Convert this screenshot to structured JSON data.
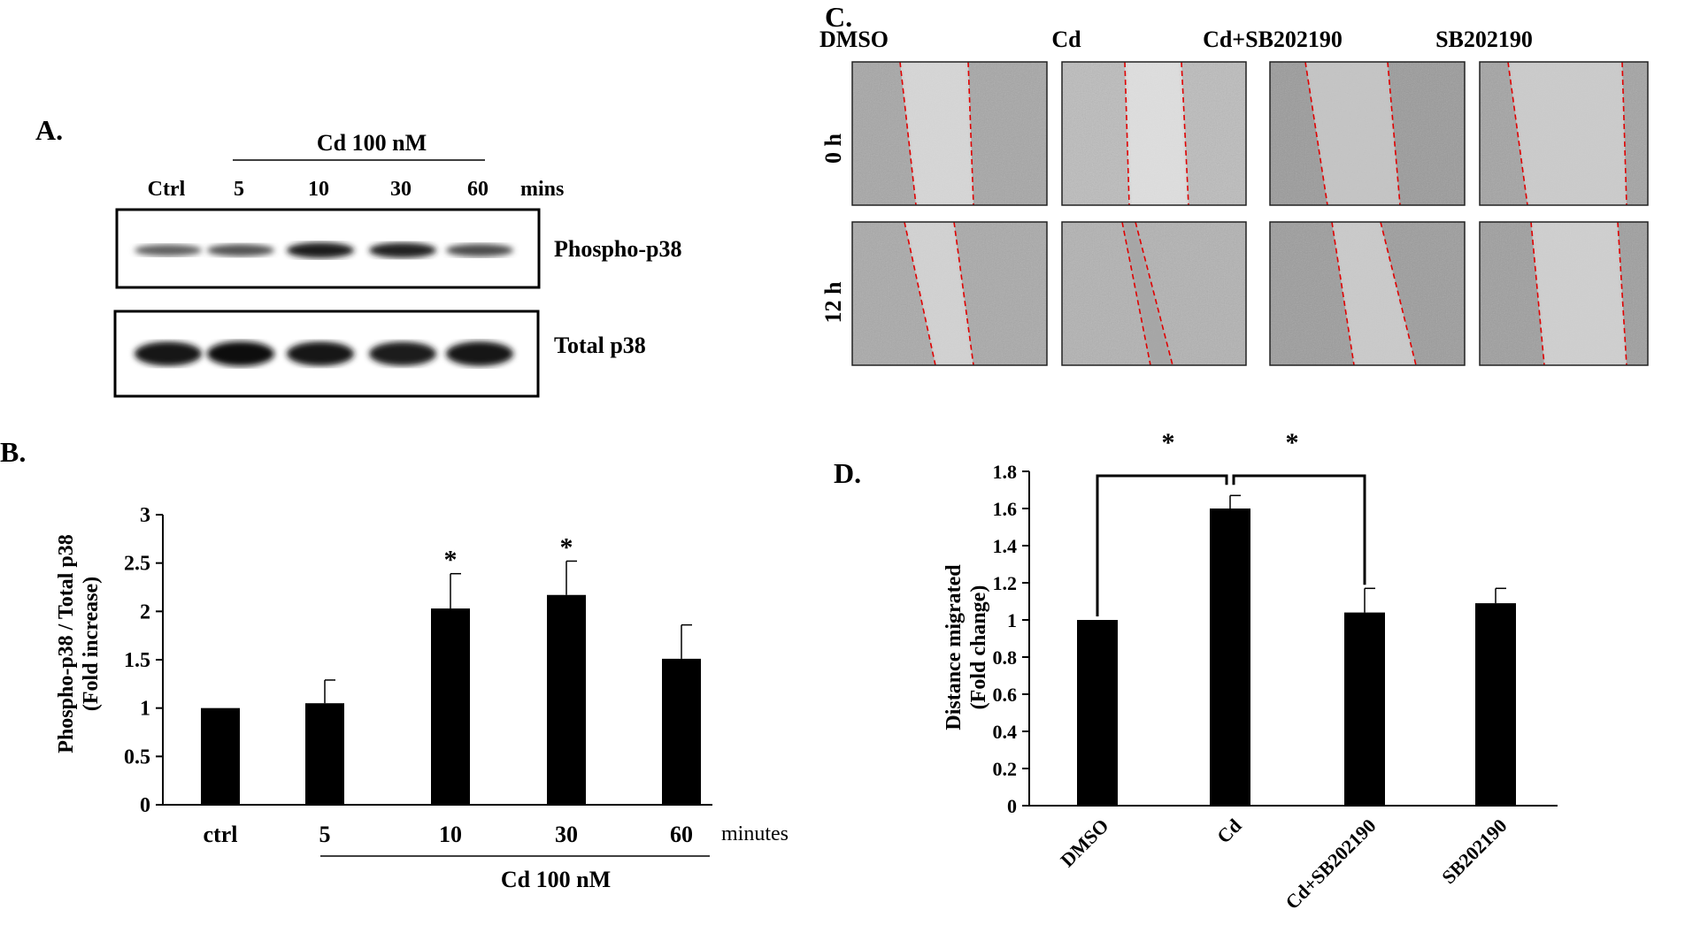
{
  "panel_a": {
    "letter": "A.",
    "treatment_label": "Cd 100 nM",
    "lanes": [
      "Ctrl",
      "5",
      "10",
      "30",
      "60"
    ],
    "unit": "mins",
    "blots": [
      {
        "name": "Phospho-p38",
        "intensities": [
          0.35,
          0.45,
          0.85,
          0.8,
          0.5
        ]
      },
      {
        "name": "Total p38",
        "intensities": [
          0.9,
          0.95,
          0.9,
          0.88,
          0.92
        ]
      }
    ]
  },
  "panel_b": {
    "letter": "B.",
    "chart_data": {
      "type": "bar",
      "categories": [
        "ctrl",
        "5",
        "10",
        "30",
        "60"
      ],
      "values": [
        1.0,
        1.05,
        2.03,
        2.17,
        1.51
      ],
      "errors": [
        0.0,
        0.24,
        0.36,
        0.35,
        0.35
      ],
      "significant": [
        false,
        false,
        true,
        true,
        false
      ],
      "significance_mark": "*",
      "ylabel_line1": "Phospho-p38 / Total p38",
      "ylabel_line2": "(Fold increase)",
      "x_unit": "minutes",
      "group_label": "Cd 100 nM",
      "yticks": [
        "0",
        "0.5",
        "1",
        "1.5",
        "2",
        "2.5",
        "3"
      ],
      "ylim": [
        0,
        3
      ]
    }
  },
  "panel_c": {
    "letter": "C.",
    "columns": [
      "DMSO",
      "Cd",
      "Cd+SB202190",
      "SB202190"
    ],
    "rows": [
      "0 h",
      "12 h"
    ]
  },
  "panel_d": {
    "letter": "D.",
    "chart_data": {
      "type": "bar",
      "categories": [
        "DMSO",
        "Cd",
        "Cd+SB202190",
        "SB202190"
      ],
      "values": [
        1.0,
        1.6,
        1.04,
        1.09
      ],
      "errors": [
        0.0,
        0.07,
        0.13,
        0.08
      ],
      "ylabel_line1": "Distance migrated",
      "ylabel_line2": "(Fold change)",
      "yticks": [
        "0",
        "0.2",
        "0.4",
        "0.6",
        "0.8",
        "1",
        "1.2",
        "1.4",
        "1.6",
        "1.8"
      ],
      "ylim": [
        0,
        1.8
      ],
      "significance_mark": "*",
      "comparisons": [
        {
          "from": "DMSO",
          "to": "Cd"
        },
        {
          "from": "Cd",
          "to": "Cd+SB202190"
        }
      ]
    }
  }
}
